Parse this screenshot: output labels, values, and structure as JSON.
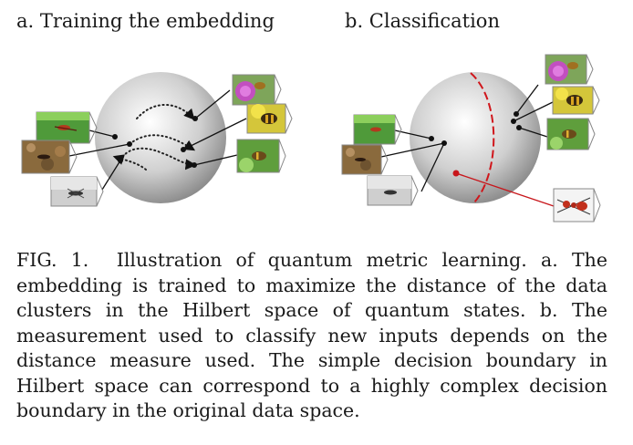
{
  "panels": {
    "a": {
      "title": "a. Training the embedding"
    },
    "b": {
      "title": "b. Classification"
    }
  },
  "caption": {
    "label": "FIG. 1.",
    "text": "Illustration of quantum metric learning. a. The embedding is trained to maximize the distance of the data clusters in the Hilbert space of quantum states. b. The measurement used to classify new inputs depends on the distance measure used. The simple decision boundary in Hilbert space can correspond to a highly complex decision boundary in the original data space."
  },
  "colors": {
    "decision_boundary": "#d0161b",
    "new_input_line": "#c8161b",
    "sphere_light": "#ffffff",
    "sphere_dark": "#7c7c7c"
  },
  "thumbnails": {
    "ant_on_leaf": "green leaf with ant",
    "ant_on_ground": "brown soil with ant",
    "ant_on_white": "grey white background with ant",
    "bee_on_thistle": "purple thistle flower with bee",
    "bee_on_yellow": "yellow flower with bee",
    "bee_on_green": "green background with bee",
    "ant_new_input": "red ant on white"
  }
}
